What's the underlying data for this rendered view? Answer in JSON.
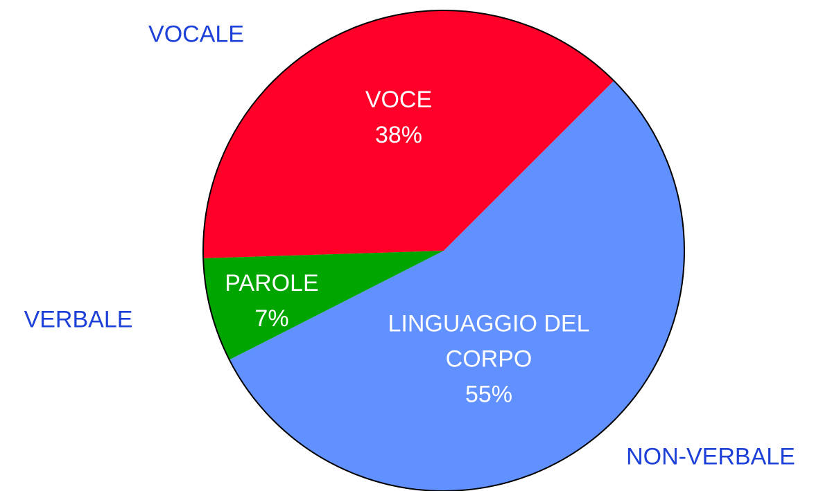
{
  "chart_data": {
    "type": "pie",
    "categories": [
      "LINGUAGGIO DEL CORPO",
      "PAROLE",
      "VOCE"
    ],
    "values": [
      55,
      7,
      38
    ],
    "value_labels": [
      "55%",
      "7%",
      "38%"
    ],
    "colors": [
      "#6190ff",
      "#00a500",
      "#ff0029"
    ],
    "start_angle": 45,
    "annotations": [
      "VOCALE",
      "VERBALE",
      "NON-VERBALE"
    ]
  }
}
